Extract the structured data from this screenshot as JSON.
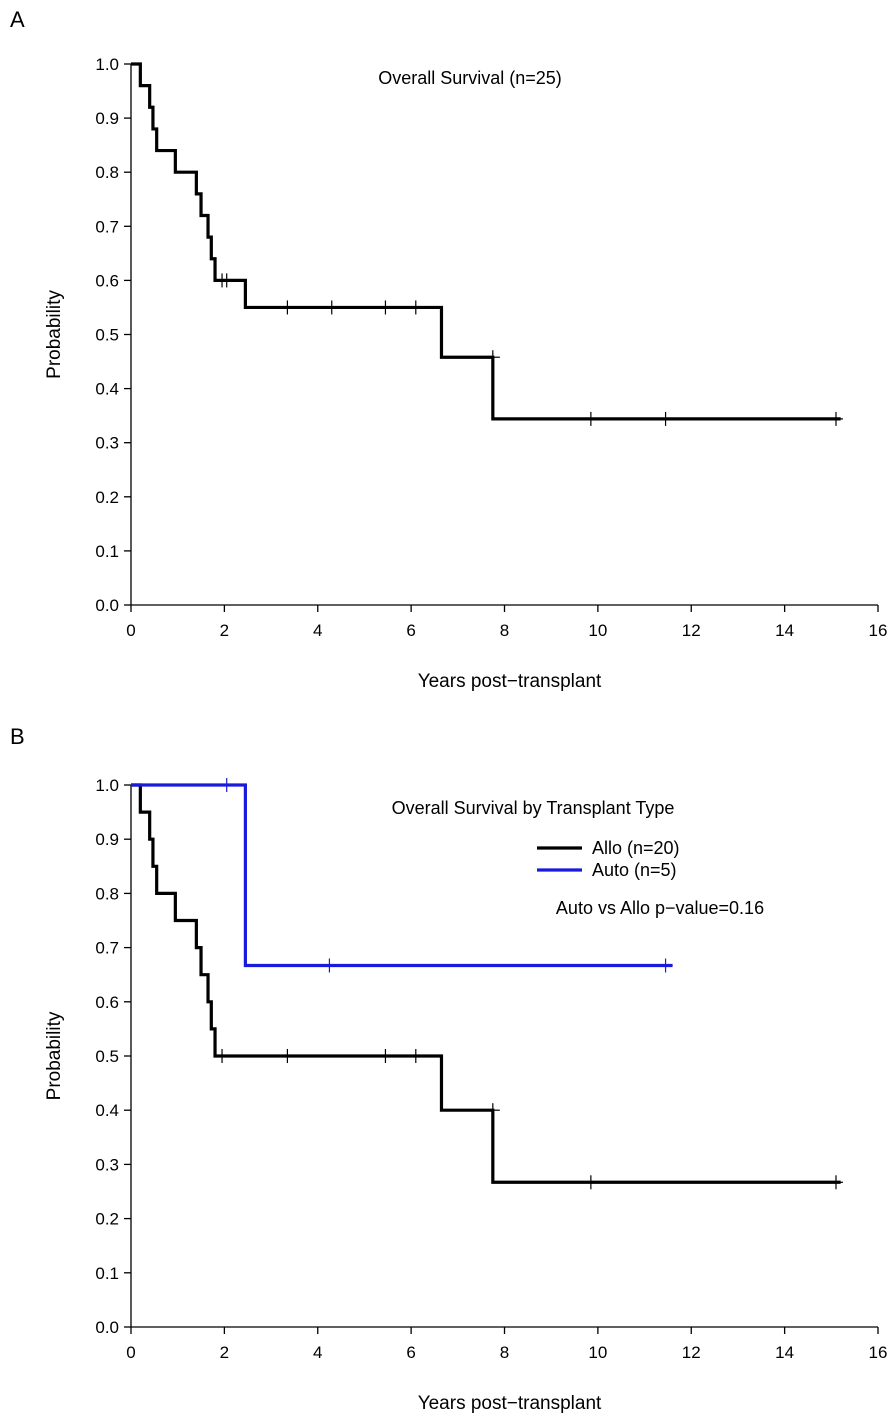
{
  "figure_title": "",
  "chart_data": [
    {
      "panel": "A",
      "type": "line",
      "title": "Overall Survival (n=25)",
      "xlabel": "Years post−transplant",
      "ylabel": "Probability",
      "xlim": [
        0,
        16
      ],
      "ylim": [
        0,
        1
      ],
      "xticks": [
        0,
        2,
        4,
        6,
        8,
        10,
        12,
        14,
        16
      ],
      "yticks": [
        0.0,
        0.1,
        0.2,
        0.3,
        0.4,
        0.5,
        0.6,
        0.7,
        0.8,
        0.9,
        1.0
      ],
      "ytick_labels": [
        "0.0",
        "0.1",
        "0.2",
        "0.3",
        "0.4",
        "0.5",
        "0.6",
        "0.7",
        "0.8",
        "0.9",
        "1.0"
      ],
      "step": true,
      "grid": false,
      "series": [
        {
          "name": "",
          "color": "#000000",
          "x": [
            0,
            0.2,
            0.4,
            0.47,
            0.55,
            0.95,
            1.4,
            1.5,
            1.65,
            1.72,
            1.8,
            2.45,
            6.65,
            7.75,
            15.2
          ],
          "y": [
            1.0,
            0.96,
            0.92,
            0.88,
            0.84,
            0.8,
            0.76,
            0.72,
            0.68,
            0.64,
            0.6,
            0.55,
            0.458,
            0.344,
            0.344
          ],
          "censored": [
            {
              "x": 1.95,
              "y": 0.6
            },
            {
              "x": 2.05,
              "y": 0.6
            },
            {
              "x": 3.35,
              "y": 0.55
            },
            {
              "x": 4.3,
              "y": 0.55
            },
            {
              "x": 5.45,
              "y": 0.55
            },
            {
              "x": 6.1,
              "y": 0.55
            },
            {
              "x": 7.75,
              "y": 0.458
            },
            {
              "x": 9.85,
              "y": 0.344
            },
            {
              "x": 11.45,
              "y": 0.344
            },
            {
              "x": 15.1,
              "y": 0.344
            }
          ]
        }
      ]
    },
    {
      "panel": "B",
      "type": "line",
      "title": "Overall Survival by Transplant Type",
      "xlabel": "Years post−transplant",
      "ylabel": "Probability",
      "xlim": [
        0,
        16
      ],
      "ylim": [
        0,
        1
      ],
      "xticks": [
        0,
        2,
        4,
        6,
        8,
        10,
        12,
        14,
        16
      ],
      "yticks": [
        0.0,
        0.1,
        0.2,
        0.3,
        0.4,
        0.5,
        0.6,
        0.7,
        0.8,
        0.9,
        1.0
      ],
      "ytick_labels": [
        "0.0",
        "0.1",
        "0.2",
        "0.3",
        "0.4",
        "0.5",
        "0.6",
        "0.7",
        "0.8",
        "0.9",
        "1.0"
      ],
      "step": true,
      "grid": false,
      "legend_position": "top-right",
      "annotation": "Auto vs Allo p−value=0.16",
      "series": [
        {
          "name": "Allo (n=20)",
          "color": "#000000",
          "x": [
            0,
            0.2,
            0.4,
            0.47,
            0.55,
            0.95,
            1.4,
            1.5,
            1.65,
            1.72,
            1.8,
            6.65,
            7.75,
            15.2
          ],
          "y": [
            1.0,
            0.95,
            0.9,
            0.85,
            0.8,
            0.75,
            0.7,
            0.65,
            0.6,
            0.55,
            0.5,
            0.4,
            0.267,
            0.267
          ],
          "censored": [
            {
              "x": 1.95,
              "y": 0.5
            },
            {
              "x": 3.35,
              "y": 0.5
            },
            {
              "x": 5.45,
              "y": 0.5
            },
            {
              "x": 6.1,
              "y": 0.5
            },
            {
              "x": 7.75,
              "y": 0.4
            },
            {
              "x": 9.85,
              "y": 0.267
            },
            {
              "x": 15.1,
              "y": 0.267
            }
          ]
        },
        {
          "name": "Auto (n=5)",
          "color": "#1a1adb",
          "x": [
            0,
            2.45,
            11.6
          ],
          "y": [
            1.0,
            0.667,
            0.667
          ],
          "censored": [
            {
              "x": 2.05,
              "y": 1.0
            },
            {
              "x": 4.25,
              "y": 0.667
            },
            {
              "x": 11.45,
              "y": 0.667
            }
          ]
        }
      ]
    }
  ]
}
